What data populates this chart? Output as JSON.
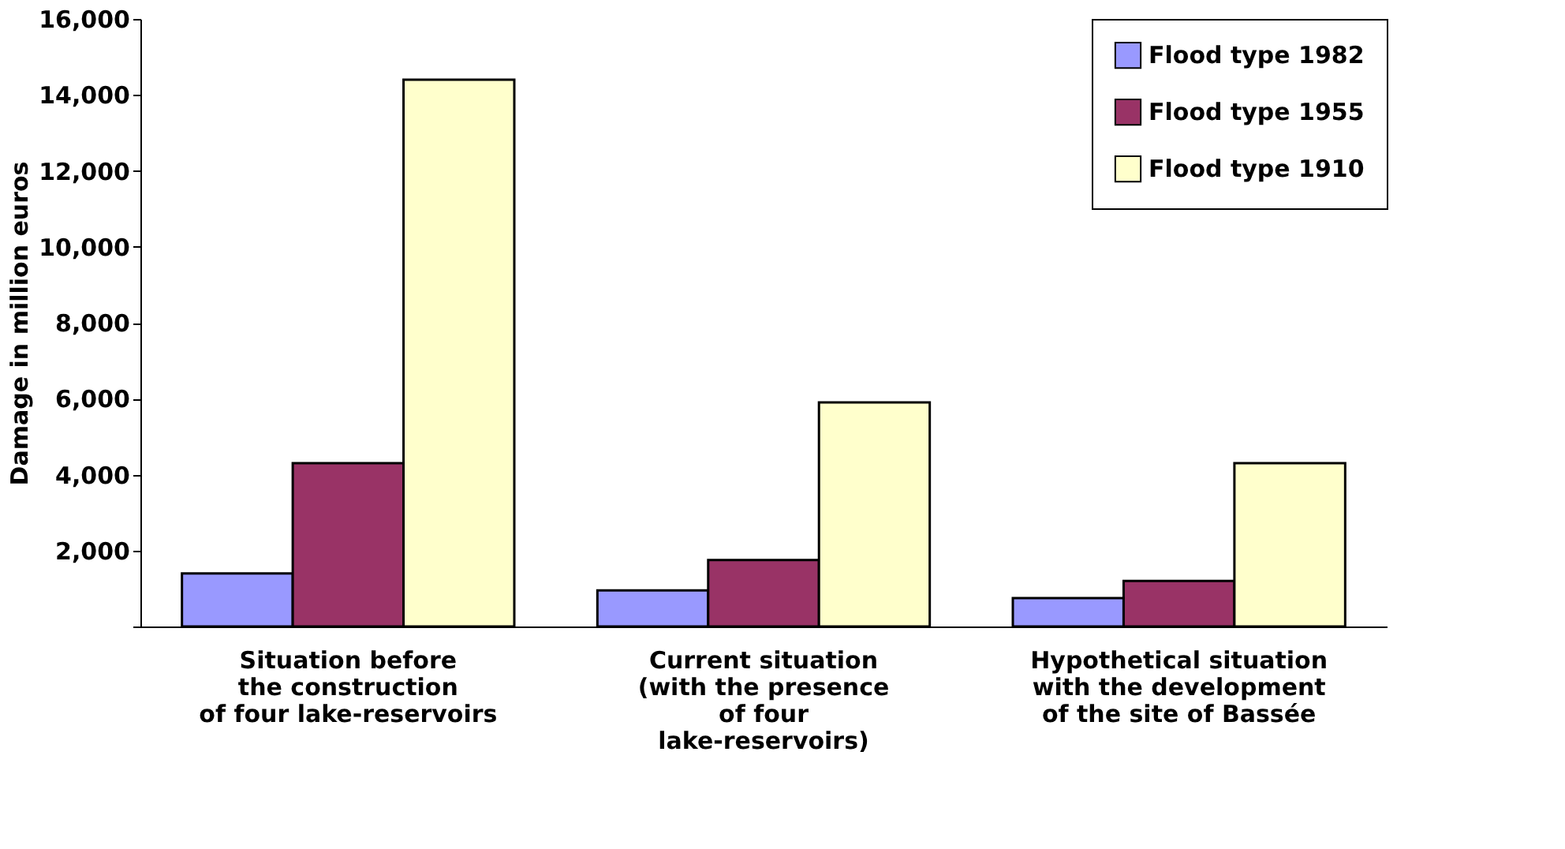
{
  "chart_data": {
    "type": "bar",
    "ylabel": "Damage in million euros",
    "categories": [
      "Situation before\nthe construction\nof four lake-reservoirs",
      "Current situation\n(with the presence\nof four\nlake-reservoirs)",
      "Hypothetical situation\nwith the development\nof the site of Bassée"
    ],
    "series": [
      {
        "name": "Flood type 1982",
        "color": "#9999ff",
        "values": [
          1400,
          950,
          750
        ]
      },
      {
        "name": "Flood type 1955",
        "color": "#993366",
        "values": [
          4300,
          1750,
          1200
        ]
      },
      {
        "name": "Flood type 1910",
        "color": "#ffffcc",
        "values": [
          14400,
          5900,
          4300
        ]
      }
    ],
    "ylim": [
      0,
      16000
    ],
    "yticks": [
      {
        "value": 0,
        "label": null
      },
      {
        "value": 2000,
        "label": "2,000"
      },
      {
        "value": 4000,
        "label": "4,000"
      },
      {
        "value": 6000,
        "label": "6,000"
      },
      {
        "value": 8000,
        "label": "8,000"
      },
      {
        "value": 10000,
        "label": "10,000"
      },
      {
        "value": 12000,
        "label": "12,000"
      },
      {
        "value": 14000,
        "label": "14,000"
      },
      {
        "value": 16000,
        "label": "16,000"
      }
    ],
    "grid": false,
    "legend": "top right"
  }
}
